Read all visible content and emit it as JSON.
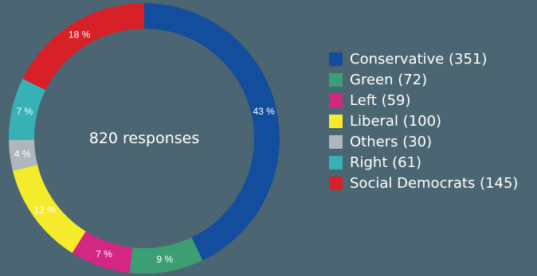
{
  "chart_data": {
    "type": "pie",
    "variant": "donut",
    "center_label": "820 responses",
    "series": [
      {
        "name": "Conservative",
        "count": 351,
        "percent": 43,
        "label": "43 %",
        "legend": "Conservative (351)",
        "color": "#134e9e"
      },
      {
        "name": "Green",
        "count": 72,
        "percent": 9,
        "label": "9 %",
        "legend": "Green (72)",
        "color": "#3c9f73"
      },
      {
        "name": "Left",
        "count": 59,
        "percent": 7,
        "label": "7 %",
        "legend": "Left (59)",
        "color": "#d42783"
      },
      {
        "name": "Liberal",
        "count": 100,
        "percent": 12,
        "label": "12 %",
        "legend": "Liberal (100)",
        "color": "#f4ec2a"
      },
      {
        "name": "Others",
        "count": 30,
        "percent": 4,
        "label": "4 %",
        "legend": "Others (30)",
        "color": "#aeb7bd"
      },
      {
        "name": "Right",
        "count": 61,
        "percent": 7,
        "label": "7 %",
        "legend": "Right (61)",
        "color": "#37b1b6"
      },
      {
        "name": "Social Democrats",
        "count": 145,
        "percent": 18,
        "label": "18 %",
        "legend": "Social Democrats (145)",
        "color": "#d82028"
      }
    ],
    "legend_position": "right"
  }
}
